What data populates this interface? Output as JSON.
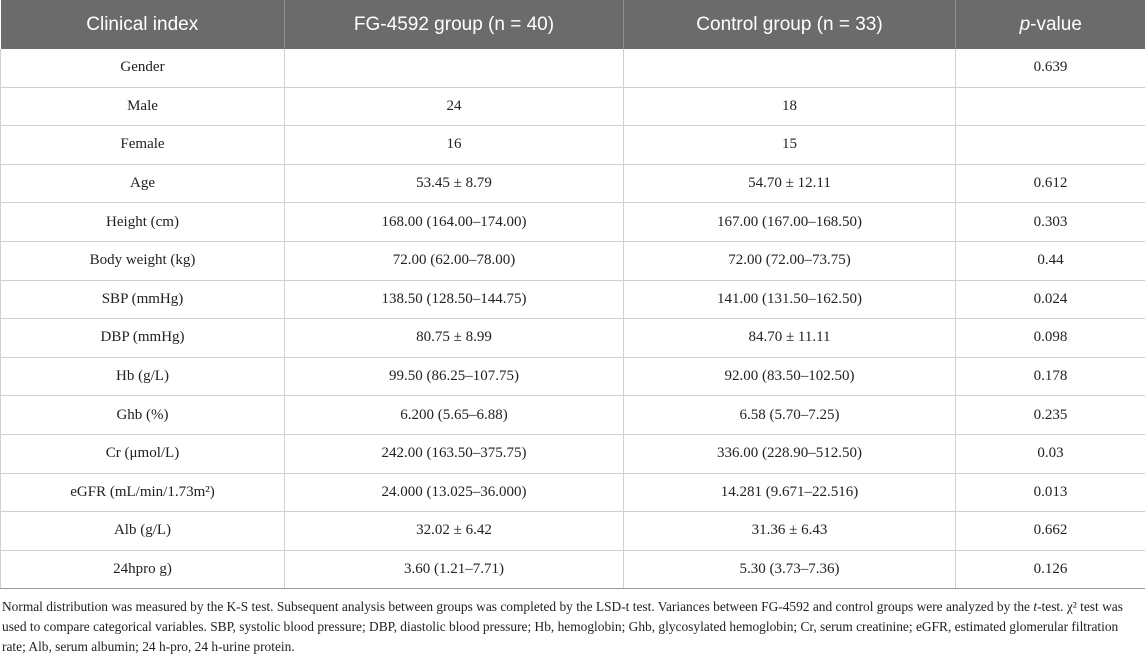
{
  "header": {
    "col1": "Clinical index",
    "col2": "FG-4592 group (n = 40)",
    "col3": "Control group (n = 33)",
    "col4_italic": "p",
    "col4_rest": "-value"
  },
  "rows": [
    {
      "index": "Gender",
      "fg": "",
      "control": "",
      "p": "0.639"
    },
    {
      "index": "Male",
      "fg": "24",
      "control": "18",
      "p": ""
    },
    {
      "index": "Female",
      "fg": "16",
      "control": "15",
      "p": ""
    },
    {
      "index": "Age",
      "fg": "53.45 ± 8.79",
      "control": "54.70 ± 12.11",
      "p": "0.612"
    },
    {
      "index": "Height (cm)",
      "fg": "168.00 (164.00–174.00)",
      "control": "167.00 (167.00–168.50)",
      "p": "0.303"
    },
    {
      "index": "Body weight (kg)",
      "fg": "72.00 (62.00–78.00)",
      "control": "72.00 (72.00–73.75)",
      "p": "0.44"
    },
    {
      "index": "SBP (mmHg)",
      "fg": "138.50 (128.50–144.75)",
      "control": "141.00 (131.50–162.50)",
      "p": "0.024"
    },
    {
      "index": "DBP (mmHg)",
      "fg": "80.75 ± 8.99",
      "control": "84.70 ± 11.11",
      "p": "0.098"
    },
    {
      "index": "Hb (g/L)",
      "fg": "99.50 (86.25–107.75)",
      "control": "92.00 (83.50–102.50)",
      "p": "0.178"
    },
    {
      "index": "Ghb (%)",
      "fg": "6.200 (5.65–6.88)",
      "control": "6.58 (5.70–7.25)",
      "p": "0.235"
    },
    {
      "index": "Cr (μmol/L)",
      "fg": "242.00 (163.50–375.75)",
      "control": "336.00 (228.90–512.50)",
      "p": "0.03"
    },
    {
      "index": "eGFR (mL/min/1.73m²)",
      "fg": "24.000 (13.025–36.000)",
      "control": "14.281 (9.671–22.516)",
      "p": "0.013"
    },
    {
      "index": "Alb (g/L)",
      "fg": "32.02 ± 6.42",
      "control": "31.36 ± 6.43",
      "p": "0.662"
    },
    {
      "index": "24hpro g)",
      "fg": "3.60 (1.21–7.71)",
      "control": "5.30 (3.73–7.36)",
      "p": "0.126"
    }
  ],
  "footnote": {
    "part1": "Normal distribution was measured by the K-S test. Subsequent analysis between groups was completed by the LSD-t test. Variances between FG-4592 and control groups were analyzed by the ",
    "italic_t": "t",
    "part2": "-test. χ² test was used to compare categorical variables. SBP, systolic blood pressure; DBP, diastolic blood pressure; Hb, hemoglobin; Ghb, glycosylated hemoglobin; Cr, serum creatinine; eGFR, estimated glomerular filtration rate; Alb, serum albumin; 24 h-pro, 24 h-urine protein."
  }
}
